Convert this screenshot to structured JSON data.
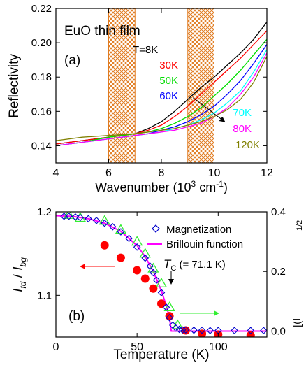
{
  "chart_data": [
    {
      "type": "line",
      "panel_label": "(a)",
      "annotation": "EuO thin film",
      "xlabel": "Wavenumber (10",
      "xlabel_sup1": "3",
      "xlabel_mid": " cm",
      "xlabel_sup2": "-1",
      "xlabel_end": ")",
      "ylabel": "Reflectivity",
      "xlim": [
        4,
        12
      ],
      "ylim": [
        0.13,
        0.22
      ],
      "xticks": [
        "4",
        "6",
        "8",
        "10",
        "12"
      ],
      "yticks": [
        "0.14",
        "0.16",
        "0.18",
        "0.20",
        "0.22"
      ],
      "ytick_values": [
        0.14,
        0.16,
        0.18,
        0.2,
        0.22
      ],
      "xtick_values": [
        4,
        6,
        8,
        10,
        12
      ],
      "hatched_regions": [
        [
          6,
          7
        ],
        [
          9,
          10
        ]
      ],
      "arrow_from": [
        9.2,
        0.168
      ],
      "arrow_to": [
        10.4,
        0.154
      ],
      "series": [
        {
          "name": "T=8K",
          "color": "#000000",
          "x": [
            4,
            5,
            6,
            7,
            7.5,
            8,
            8.5,
            9,
            9.5,
            10,
            10.5,
            11,
            11.5,
            12
          ],
          "y": [
            0.141,
            0.143,
            0.145,
            0.147,
            0.15,
            0.154,
            0.16,
            0.167,
            0.174,
            0.18,
            0.187,
            0.194,
            0.202,
            0.212
          ]
        },
        {
          "name": "30K",
          "color": "#ff0000",
          "x": [
            4,
            5,
            6,
            7,
            7.5,
            8,
            8.5,
            9,
            9.5,
            10,
            10.5,
            11,
            11.5,
            12
          ],
          "y": [
            0.141,
            0.143,
            0.145,
            0.147,
            0.149,
            0.152,
            0.157,
            0.163,
            0.17,
            0.177,
            0.184,
            0.191,
            0.199,
            0.207
          ]
        },
        {
          "name": "50K",
          "color": "#00dd00",
          "x": [
            4,
            5,
            6,
            7,
            7.5,
            8,
            8.5,
            9,
            9.5,
            10,
            10.5,
            11,
            11.5,
            12
          ],
          "y": [
            0.14,
            0.142,
            0.145,
            0.147,
            0.148,
            0.15,
            0.153,
            0.157,
            0.162,
            0.169,
            0.176,
            0.184,
            0.193,
            0.202
          ]
        },
        {
          "name": "60K",
          "color": "#0000ff",
          "x": [
            4,
            5,
            6,
            7,
            7.5,
            8,
            8.5,
            9,
            9.5,
            10,
            10.5,
            11,
            11.5,
            12
          ],
          "y": [
            0.14,
            0.142,
            0.144,
            0.146,
            0.147,
            0.149,
            0.151,
            0.154,
            0.158,
            0.163,
            0.17,
            0.178,
            0.188,
            0.199
          ]
        },
        {
          "name": "70K",
          "color": "#00ffff",
          "x": [
            4,
            5,
            6,
            7,
            7.5,
            8,
            8.5,
            9,
            9.5,
            10,
            10.5,
            11,
            11.5,
            12
          ],
          "y": [
            0.14,
            0.142,
            0.144,
            0.146,
            0.147,
            0.148,
            0.15,
            0.152,
            0.155,
            0.159,
            0.165,
            0.172,
            0.183,
            0.196
          ]
        },
        {
          "name": "80K",
          "color": "#ff00ff",
          "x": [
            4,
            5,
            6,
            7,
            7.5,
            8,
            8.5,
            9,
            9.5,
            10,
            10.5,
            11,
            11.5,
            12
          ],
          "y": [
            0.14,
            0.142,
            0.144,
            0.146,
            0.147,
            0.148,
            0.149,
            0.151,
            0.153,
            0.157,
            0.162,
            0.17,
            0.18,
            0.194
          ]
        },
        {
          "name": "120K",
          "color": "#808000",
          "x": [
            4,
            5,
            6,
            7,
            7.5,
            8,
            8.5,
            9,
            9.5,
            10,
            10.5,
            11,
            11.5,
            12
          ],
          "y": [
            0.143,
            0.145,
            0.146,
            0.147,
            0.148,
            0.149,
            0.15,
            0.152,
            0.154,
            0.157,
            0.161,
            0.167,
            0.177,
            0.192
          ]
        }
      ]
    },
    {
      "type": "scatter",
      "panel_label": "(b)",
      "xlabel": "Temperature (K)",
      "ylabel_left_parts": [
        "I",
        "fd",
        " / ",
        "I",
        "bg"
      ],
      "ylabel_right": "[(I",
      "ylabel_right_sup": "1/2",
      "xlim": [
        0,
        130
      ],
      "ylim_left": [
        1.05,
        1.2
      ],
      "ylim_right": [
        -0.02,
        0.4
      ],
      "xticks": [
        "0",
        "50",
        "100"
      ],
      "xtick_values": [
        0,
        50,
        100
      ],
      "yticks_left": [
        "1.1",
        "1.2"
      ],
      "ytick_left_values": [
        1.1,
        1.2
      ],
      "yticks_right": [
        "0.0",
        "0.2",
        "0.4"
      ],
      "ytick_right_values": [
        0.0,
        0.2,
        0.4
      ],
      "annotation_tc_label": "T",
      "annotation_tc_sub": "C",
      "annotation_tc_value": " (= 71.1 K)",
      "tc": 71.1,
      "legend": {
        "magnetization": "Magnetization",
        "brillouin": "Brillouin function"
      },
      "series": [
        {
          "name": "Magnetization",
          "axis": "right",
          "marker": "diamond",
          "color": "#0000cc",
          "x": [
            5,
            8,
            12,
            15,
            20,
            25,
            30,
            35,
            40,
            45,
            50,
            55,
            58,
            60,
            62,
            65,
            68,
            70,
            72,
            74,
            76,
            78,
            80,
            85,
            90,
            95,
            100,
            110,
            120,
            128
          ],
          "y": [
            0.385,
            0.385,
            0.383,
            0.381,
            0.377,
            0.371,
            0.362,
            0.35,
            0.333,
            0.311,
            0.282,
            0.245,
            0.218,
            0.196,
            0.171,
            0.129,
            0.08,
            0.045,
            0.02,
            0.01,
            0.006,
            0.004,
            0.004,
            0.003,
            0.003,
            0.002,
            0.002,
            0.002,
            0.002,
            0.002
          ]
        },
        {
          "name": "Brillouin function",
          "axis": "right",
          "type": "line",
          "color": "#ff00ff",
          "x": [
            0,
            10,
            20,
            30,
            40,
            50,
            55,
            60,
            65,
            68,
            70,
            71.1,
            80,
            130
          ],
          "y": [
            0.387,
            0.385,
            0.377,
            0.362,
            0.335,
            0.287,
            0.25,
            0.2,
            0.135,
            0.085,
            0.045,
            0.0,
            0.0,
            0.0
          ]
        },
        {
          "name": "Ifd/Ibg",
          "axis": "left",
          "marker": "circle",
          "color": "#ff0000",
          "x": [
            30,
            40,
            50,
            55,
            60,
            65,
            70,
            80,
            90,
            100,
            120
          ],
          "y": [
            1.16,
            1.145,
            1.13,
            1.12,
            1.108,
            1.09,
            1.075,
            1.058,
            1.054,
            1.053,
            1.052
          ]
        },
        {
          "name": "triangles",
          "axis": "right",
          "marker": "triangle",
          "color": "#33ee33",
          "x": [
            8,
            15,
            30,
            40,
            50,
            55,
            60,
            65,
            70,
            75
          ],
          "y": [
            0.39,
            0.38,
            0.37,
            0.34,
            0.3,
            0.26,
            0.21,
            0.16,
            0.08,
            0.02
          ]
        }
      ]
    }
  ]
}
